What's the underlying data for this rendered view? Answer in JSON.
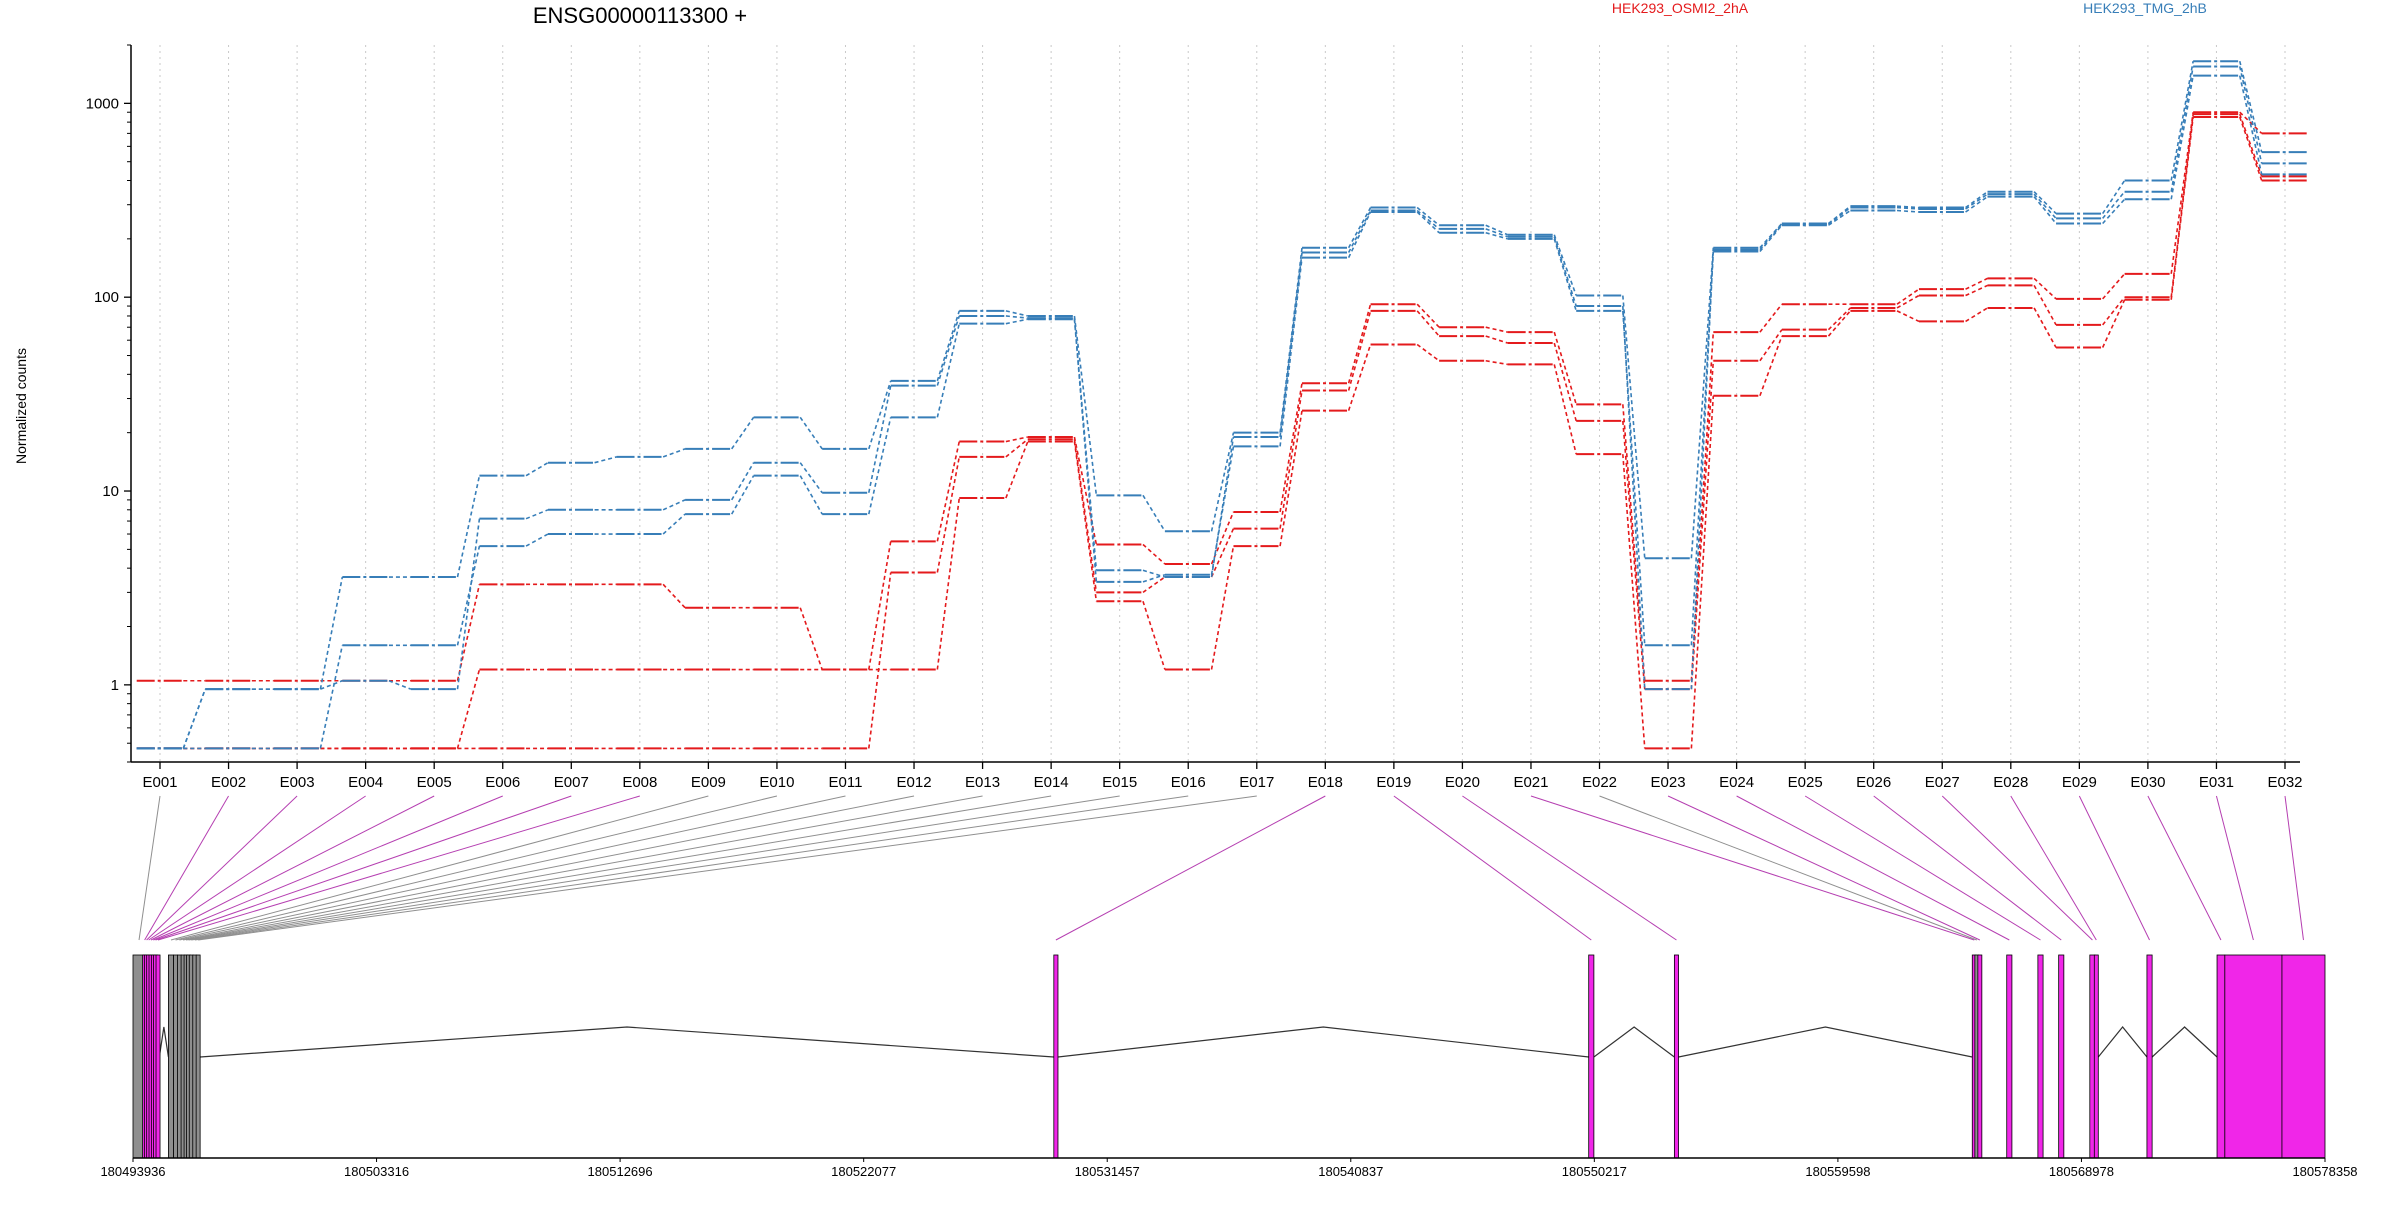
{
  "chart_data": [
    {
      "type": "line",
      "title": "ENSG00000113300 +",
      "ylabel": "Normalized counts",
      "yscale": "log",
      "ylim": [
        0.4,
        2000
      ],
      "y_ticks": [
        1,
        10,
        100,
        1000
      ],
      "y_tick_labels": [
        "1",
        "10",
        "100",
        "1000"
      ],
      "grid": "vertical dotted lines at exon bins",
      "legend": "top (text labels)",
      "categories": [
        "E001",
        "E002",
        "E003",
        "E004",
        "E005",
        "E006",
        "E007",
        "E008",
        "E009",
        "E010",
        "E011",
        "E012",
        "E013",
        "E014",
        "E015",
        "E016",
        "E017",
        "E018",
        "E019",
        "E020",
        "E021",
        "E022",
        "E023",
        "E024",
        "E025",
        "E026",
        "E027",
        "E028",
        "E029",
        "E030",
        "E031",
        "E032"
      ],
      "groups": [
        {
          "name": "HEK293_OSMI2_2hA",
          "color": "#e41a1c"
        },
        {
          "name": "HEK293_TMG_2hB",
          "color": "#377eb8"
        }
      ],
      "series": [
        {
          "group": "HEK293_OSMI2_2hA",
          "color": "#e41a1c",
          "values": [
            1.05,
            1.05,
            1.05,
            1.05,
            1.05,
            3.3,
            3.3,
            3.3,
            2.5,
            2.5,
            1.2,
            5.5,
            18,
            19,
            5.3,
            4.2,
            7.8,
            36,
            92,
            70,
            66,
            28,
            1.05,
            66,
            92,
            92,
            110,
            125,
            98,
            132,
            900,
            700
          ]
        },
        {
          "group": "HEK293_OSMI2_2hA",
          "color": "#e41a1c",
          "values": [
            0.47,
            0.47,
            0.47,
            0.47,
            0.47,
            1.2,
            1.2,
            1.2,
            1.2,
            1.2,
            1.2,
            1.2,
            9.2,
            18,
            2.7,
            1.2,
            5.2,
            26,
            57,
            47,
            45,
            15.5,
            0.47,
            31,
            63,
            85,
            75,
            88,
            55,
            97,
            850,
            400
          ]
        },
        {
          "group": "HEK293_OSMI2_2hA",
          "color": "#e41a1c",
          "values": [
            0.47,
            0.47,
            0.47,
            0.47,
            0.47,
            0.47,
            0.47,
            0.47,
            0.47,
            0.47,
            0.47,
            3.8,
            15,
            18.5,
            3.0,
            3.6,
            6.4,
            33,
            85,
            63,
            58,
            23,
            0.95,
            47,
            68,
            88,
            102,
            115,
            72,
            100,
            880,
            420
          ]
        },
        {
          "group": "HEK293_TMG_2hB",
          "color": "#377eb8",
          "values": [
            0.47,
            0.95,
            0.95,
            3.6,
            3.6,
            12,
            14,
            15,
            16.5,
            24,
            16.5,
            37,
            85,
            80,
            9.5,
            6.2,
            20,
            180,
            290,
            235,
            210,
            102,
            4.5,
            180,
            240,
            295,
            290,
            350,
            270,
            400,
            1650,
            560
          ]
        },
        {
          "group": "HEK293_TMG_2hB",
          "color": "#377eb8",
          "values": [
            0.47,
            0.47,
            0.47,
            1.6,
            1.6,
            5.2,
            6.0,
            6.0,
            7.6,
            12,
            7.6,
            24,
            73,
            77,
            3.4,
            3.7,
            17,
            160,
            275,
            215,
            200,
            85,
            1.6,
            172,
            235,
            280,
            275,
            330,
            240,
            320,
            1390,
            430
          ]
        },
        {
          "group": "HEK293_TMG_2hB",
          "color": "#377eb8",
          "values": [
            0.47,
            0.95,
            0.95,
            1.05,
            0.95,
            7.2,
            8.0,
            8.0,
            9.0,
            14,
            9.8,
            35,
            80,
            78,
            3.9,
            3.6,
            19,
            170,
            280,
            225,
            205,
            90,
            0.95,
            176,
            238,
            290,
            285,
            340,
            255,
            350,
            1550,
            490
          ]
        }
      ]
    },
    {
      "type": "gene-model",
      "genomic_range": [
        180493936,
        180578358
      ],
      "axis_ticks": [
        180493936,
        180503316,
        180512696,
        180522077,
        180531457,
        180540837,
        180550217,
        180559598,
        180568978,
        180578358
      ],
      "axis_tick_labels": [
        "180493936",
        "180503316",
        "180512696",
        "180522077",
        "180531457",
        "180540837",
        "180550217",
        "180559598",
        "180568978",
        "180578358"
      ],
      "colors": {
        "tested": "#f026e8",
        "not_tested": "#8f8f8f",
        "intron": "#000000"
      },
      "exon_bins": [
        {
          "id": "E001",
          "start": 180493936,
          "end": 180494400,
          "tested": false
        },
        {
          "id": "E002",
          "start": 180494350,
          "end": 180494420,
          "tested": true
        },
        {
          "id": "E003",
          "start": 180494420,
          "end": 180494500,
          "tested": true
        },
        {
          "id": "E004",
          "start": 180494500,
          "end": 180494580,
          "tested": true
        },
        {
          "id": "E005",
          "start": 180494580,
          "end": 180494680,
          "tested": true
        },
        {
          "id": "E006",
          "start": 180494680,
          "end": 180494760,
          "tested": true
        },
        {
          "id": "E007",
          "start": 180494760,
          "end": 180494850,
          "tested": true
        },
        {
          "id": "E008",
          "start": 180494850,
          "end": 180494950,
          "tested": true
        },
        {
          "id": "E009",
          "start": 180495300,
          "end": 180495500,
          "tested": false
        },
        {
          "id": "E010",
          "start": 180495500,
          "end": 180495650,
          "tested": false
        },
        {
          "id": "E011",
          "start": 180495650,
          "end": 180495800,
          "tested": false
        },
        {
          "id": "E012",
          "start": 180495800,
          "end": 180495930,
          "tested": false
        },
        {
          "id": "E013",
          "start": 180495930,
          "end": 180496030,
          "tested": false
        },
        {
          "id": "E014",
          "start": 180496030,
          "end": 180496120,
          "tested": false
        },
        {
          "id": "E015",
          "start": 180496120,
          "end": 180496240,
          "tested": false
        },
        {
          "id": "E016",
          "start": 180496240,
          "end": 180496390,
          "tested": false
        },
        {
          "id": "E017",
          "start": 180496390,
          "end": 180496500,
          "tested": false
        },
        {
          "id": "E018",
          "start": 180529400,
          "end": 180529560,
          "tested": true
        },
        {
          "id": "E019",
          "start": 180550000,
          "end": 180550200,
          "tested": true
        },
        {
          "id": "E020",
          "start": 180553300,
          "end": 180553460,
          "tested": true
        },
        {
          "id": "E021",
          "start": 180564800,
          "end": 180564900,
          "tested": true
        },
        {
          "id": "E022",
          "start": 180564900,
          "end": 180565000,
          "tested": false
        },
        {
          "id": "E023",
          "start": 180565000,
          "end": 180565130,
          "tested": true
        },
        {
          "id": "E024",
          "start": 180566100,
          "end": 180566300,
          "tested": true
        },
        {
          "id": "E025",
          "start": 180567300,
          "end": 180567500,
          "tested": true
        },
        {
          "id": "E026",
          "start": 180568100,
          "end": 180568300,
          "tested": true
        },
        {
          "id": "E027",
          "start": 180569300,
          "end": 180569500,
          "tested": true
        },
        {
          "id": "E028",
          "start": 180569500,
          "end": 180569600,
          "tested": true
        },
        {
          "id": "E029",
          "start": 180571500,
          "end": 180571700,
          "tested": true
        },
        {
          "id": "E030",
          "start": 180574200,
          "end": 180574500,
          "tested": true
        },
        {
          "id": "E031",
          "start": 180574500,
          "end": 180576700,
          "tested": true
        },
        {
          "id": "E032",
          "start": 180576700,
          "end": 180578358,
          "tested": true
        }
      ]
    }
  ]
}
